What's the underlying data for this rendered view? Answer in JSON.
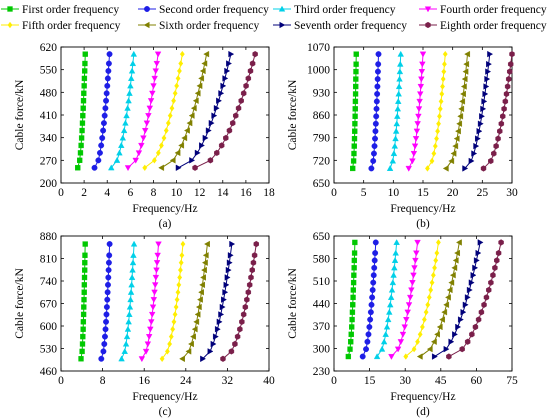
{
  "legend": [
    {
      "label": "First order frequency",
      "color": "#00c800",
      "marker": "square"
    },
    {
      "label": "Second order frequency",
      "color": "#1e1ee6",
      "marker": "circle"
    },
    {
      "label": "Third order frequency",
      "color": "#00d0e8",
      "marker": "triangle-up"
    },
    {
      "label": "Fourth order frequency",
      "color": "#ff00ff",
      "marker": "triangle-down"
    },
    {
      "label": "Fifth order frequency",
      "color": "#ffee00",
      "marker": "diamond"
    },
    {
      "label": "Sixth order frequency",
      "color": "#808000",
      "marker": "triangle-left"
    },
    {
      "label": "Seventh order frequency",
      "color": "#00007a",
      "marker": "triangle-right"
    },
    {
      "label": "Eighth order frequency",
      "color": "#7a1f4a",
      "marker": "hexagon"
    }
  ],
  "chart_data": [
    {
      "type": "scatter",
      "caption": "(a)",
      "xlabel": "Frequency/Hz",
      "ylabel": "Cable force/kN",
      "xlim": [
        0,
        18
      ],
      "ylim": [
        200,
        620
      ],
      "xticks": [
        "0",
        "2",
        "4",
        "6",
        "8",
        "10",
        "12",
        "14",
        "16",
        "18"
      ],
      "yticks": [
        "200",
        "270",
        "340",
        "410",
        "480",
        "550",
        "620"
      ],
      "y": [
        247,
        270,
        293,
        316,
        339,
        362,
        385,
        408,
        431,
        454,
        477,
        500,
        523,
        546,
        569,
        598
      ],
      "series": [
        {
          "name": "First order frequency",
          "x_range": [
            1.45,
            2.1
          ]
        },
        {
          "name": "Second order frequency",
          "x_range": [
            2.9,
            4.2
          ]
        },
        {
          "name": "Third order frequency",
          "x_range": [
            4.35,
            6.3
          ]
        },
        {
          "name": "Fourth order frequency",
          "x_range": [
            5.8,
            8.4
          ]
        },
        {
          "name": "Fifth order frequency",
          "x_range": [
            7.25,
            10.5
          ]
        },
        {
          "name": "Sixth order frequency",
          "x_range": [
            8.7,
            12.6
          ]
        },
        {
          "name": "Seventh order frequency",
          "x_range": [
            10.15,
            14.7
          ]
        },
        {
          "name": "Eighth order frequency",
          "x_range": [
            11.6,
            16.8
          ]
        }
      ]
    },
    {
      "type": "scatter",
      "caption": "(b)",
      "xlabel": "Frequency/Hz",
      "ylabel": "Cable force/kN",
      "xlim": [
        0,
        30
      ],
      "ylim": [
        650,
        1070
      ],
      "xticks": [
        "0",
        "5",
        "10",
        "15",
        "20",
        "25",
        "30"
      ],
      "yticks": [
        "650",
        "720",
        "790",
        "860",
        "930",
        "1000",
        "1070"
      ],
      "y": [
        695,
        718,
        741,
        764,
        787,
        810,
        833,
        856,
        879,
        902,
        925,
        948,
        971,
        994,
        1017,
        1048
      ],
      "series": [
        {
          "name": "First order frequency",
          "x_range": [
            3.15,
            3.75
          ]
        },
        {
          "name": "Second order frequency",
          "x_range": [
            6.3,
            7.5
          ]
        },
        {
          "name": "Third order frequency",
          "x_range": [
            9.45,
            11.25
          ]
        },
        {
          "name": "Fourth order frequency",
          "x_range": [
            12.6,
            15.0
          ]
        },
        {
          "name": "Fifth order frequency",
          "x_range": [
            15.75,
            18.75
          ]
        },
        {
          "name": "Sixth order frequency",
          "x_range": [
            18.9,
            22.5
          ]
        },
        {
          "name": "Seventh order frequency",
          "x_range": [
            22.05,
            26.25
          ]
        },
        {
          "name": "Eighth order frequency",
          "x_range": [
            25.2,
            30.0
          ]
        }
      ]
    },
    {
      "type": "scatter",
      "caption": "(c)",
      "xlabel": "Frequency/Hz",
      "ylabel": "Cable force/kN",
      "xlim": [
        0,
        40
      ],
      "ylim": [
        460,
        880
      ],
      "xticks": [
        "0",
        "8",
        "16",
        "24",
        "32",
        "40"
      ],
      "yticks": [
        "460",
        "530",
        "600",
        "670",
        "740",
        "810",
        "880"
      ],
      "y": [
        498,
        521,
        544,
        567,
        590,
        613,
        636,
        659,
        682,
        705,
        728,
        751,
        774,
        797,
        820,
        855
      ],
      "series": [
        {
          "name": "First order frequency",
          "x_range": [
            3.85,
            4.65
          ]
        },
        {
          "name": "Second order frequency",
          "x_range": [
            7.75,
            9.35
          ]
        },
        {
          "name": "Third order frequency",
          "x_range": [
            11.65,
            14.05
          ]
        },
        {
          "name": "Fourth order frequency",
          "x_range": [
            15.55,
            18.75
          ]
        },
        {
          "name": "Fifth order frequency",
          "x_range": [
            19.45,
            23.45
          ]
        },
        {
          "name": "Sixth order frequency",
          "x_range": [
            23.35,
            28.15
          ]
        },
        {
          "name": "Seventh order frequency",
          "x_range": [
            27.25,
            32.85
          ]
        },
        {
          "name": "Eighth order frequency",
          "x_range": [
            31.15,
            37.55
          ]
        }
      ]
    },
    {
      "type": "scatter",
      "caption": "(d)",
      "xlabel": "Frequency/Hz",
      "ylabel": "Cable force/kN",
      "xlim": [
        0,
        75
      ],
      "ylim": [
        230,
        650
      ],
      "xticks": [
        "0",
        "15",
        "30",
        "45",
        "60",
        "75"
      ],
      "yticks": [
        "230",
        "300",
        "370",
        "440",
        "510",
        "580",
        "650"
      ],
      "y": [
        275,
        298,
        321,
        344,
        367,
        390,
        413,
        436,
        459,
        482,
        505,
        528,
        551,
        574,
        597,
        630
      ],
      "series": [
        {
          "name": "First order frequency",
          "x_range": [
            6.05,
            8.8
          ]
        },
        {
          "name": "Second order frequency",
          "x_range": [
            12.1,
            17.6
          ]
        },
        {
          "name": "Third order frequency",
          "x_range": [
            18.15,
            26.4
          ]
        },
        {
          "name": "Fourth order frequency",
          "x_range": [
            24.2,
            35.2
          ]
        },
        {
          "name": "Fifth order frequency",
          "x_range": [
            30.25,
            44.0
          ]
        },
        {
          "name": "Sixth order frequency",
          "x_range": [
            36.3,
            52.8
          ]
        },
        {
          "name": "Seventh order frequency",
          "x_range": [
            42.35,
            61.6
          ]
        },
        {
          "name": "Eighth order frequency",
          "x_range": [
            48.4,
            70.4
          ]
        }
      ]
    }
  ]
}
